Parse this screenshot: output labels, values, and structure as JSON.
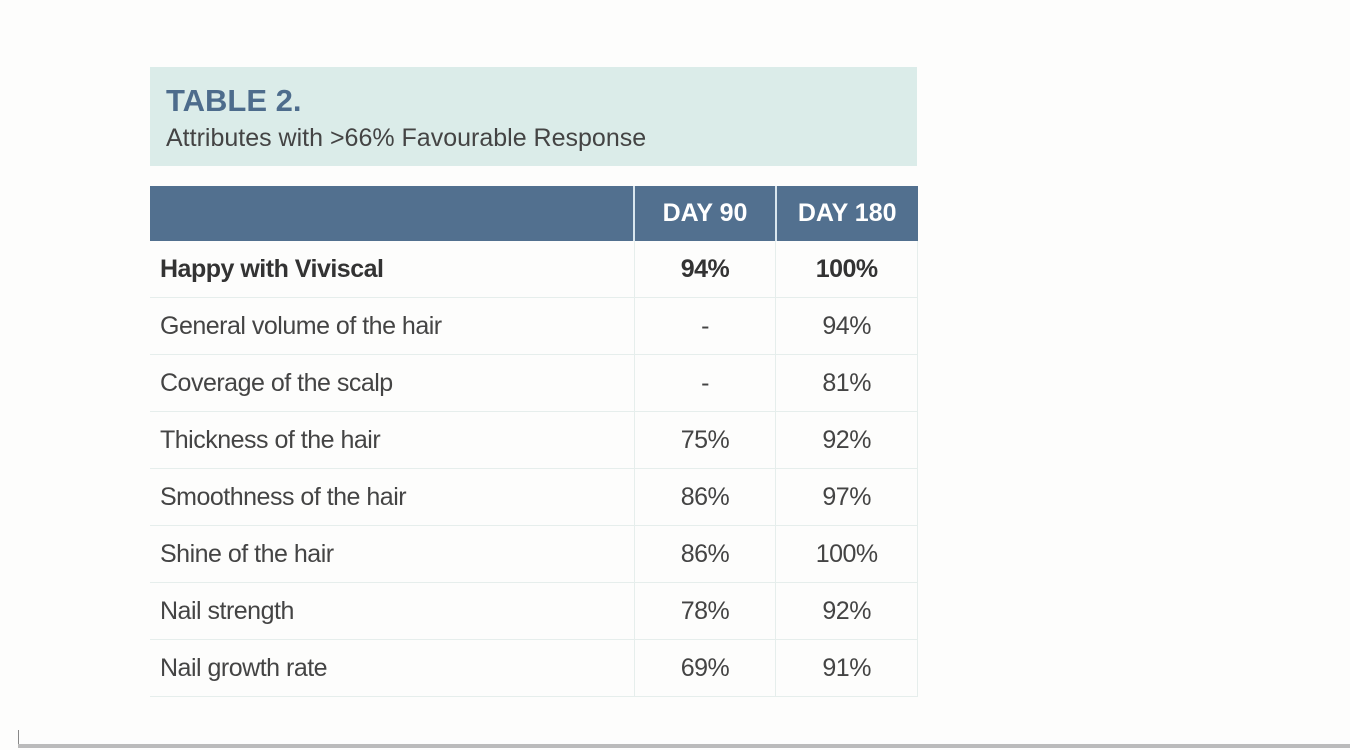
{
  "title": "TABLE 2.",
  "subtitle": "Attributes with >66% Favourable Response",
  "columns": [
    "",
    "DAY 90",
    "DAY 180"
  ],
  "rows": [
    {
      "label": "Happy with Viviscal",
      "day90": "94%",
      "day180": "100%"
    },
    {
      "label": "General volume of the hair",
      "day90": "-",
      "day180": "94%"
    },
    {
      "label": "Coverage of the scalp",
      "day90": "-",
      "day180": "81%"
    },
    {
      "label": "Thickness of the hair",
      "day90": "75%",
      "day180": "92%"
    },
    {
      "label": "Smoothness of the hair",
      "day90": "86%",
      "day180": "97%"
    },
    {
      "label": "Shine of the hair",
      "day90": "86%",
      "day180": "100%"
    },
    {
      "label": "Nail strength",
      "day90": "78%",
      "day180": "92%"
    },
    {
      "label": "Nail growth rate",
      "day90": "69%",
      "day180": "91%"
    }
  ],
  "colors": {
    "header": "#52708f",
    "band": "#dbece9",
    "title": "#4d6c8c"
  }
}
